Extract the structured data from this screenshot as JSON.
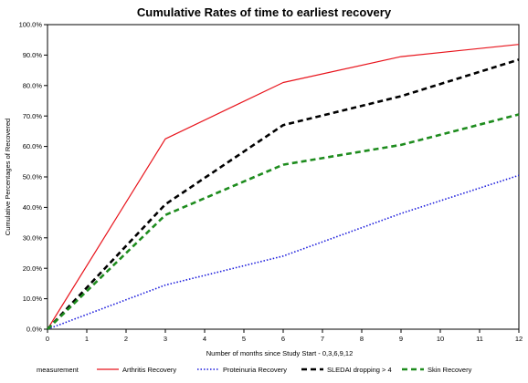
{
  "chart_data": {
    "type": "line",
    "title": "Cumulative Rates of time to earliest recovery",
    "xlabel": "Number of months since Study Start - 0,3,6,9,12",
    "ylabel": "Cumulative Percentages of Recovered",
    "x_ticks": [
      "0",
      "1",
      "2",
      "3",
      "4",
      "5",
      "6",
      "7",
      "8",
      "9",
      "10",
      "11",
      "12"
    ],
    "y_ticks": [
      "0.0%",
      "10.0%",
      "20.0%",
      "30.0%",
      "40.0%",
      "50.0%",
      "60.0%",
      "70.0%",
      "80.0%",
      "90.0%",
      "100.0%"
    ],
    "xlim": [
      0,
      12
    ],
    "ylim": [
      0,
      100
    ],
    "grid": false,
    "legend_title": "measurement",
    "legend_position": "bottom",
    "series": [
      {
        "name": "Arthritis Recovery",
        "color": "#e8141c",
        "dash": "solid",
        "width": 1.2,
        "x": [
          0,
          3,
          6,
          9,
          12
        ],
        "values": [
          0,
          62.5,
          81.0,
          89.5,
          93.5
        ]
      },
      {
        "name": "Proteinuria Recovery",
        "color": "#1a1adc",
        "dash": "dotted",
        "width": 1.6,
        "x": [
          0,
          3,
          6,
          9,
          12
        ],
        "values": [
          0,
          14.5,
          24.0,
          38.0,
          50.5
        ]
      },
      {
        "name": "SLEDAI dropping > 4",
        "color": "#000000",
        "dash": "dashed",
        "width": 2.6,
        "x": [
          0,
          3,
          6,
          9,
          12
        ],
        "values": [
          0,
          41.0,
          67.0,
          76.5,
          88.5
        ]
      },
      {
        "name": "Skin Recovery",
        "color": "#1e8c1e",
        "dash": "dashed",
        "width": 2.6,
        "x": [
          0,
          3,
          6,
          9,
          12
        ],
        "values": [
          0,
          37.5,
          54.0,
          60.5,
          70.5
        ]
      }
    ]
  }
}
